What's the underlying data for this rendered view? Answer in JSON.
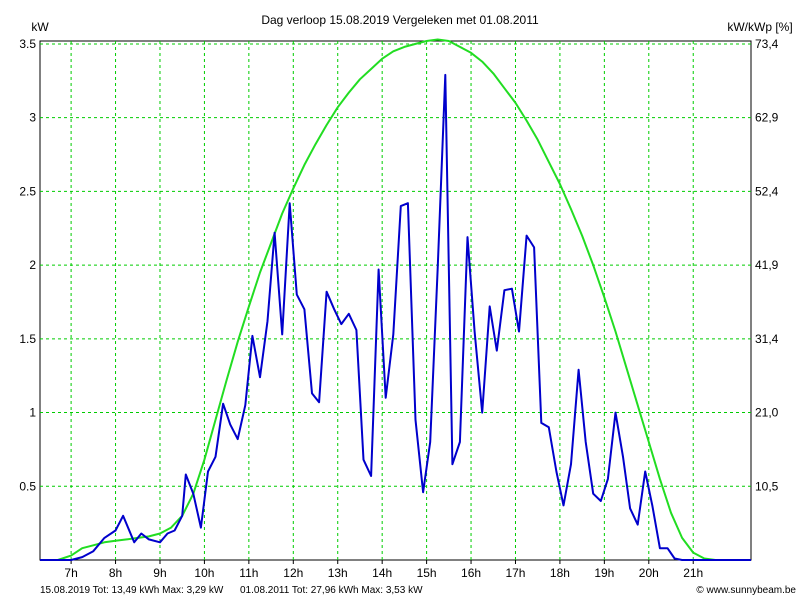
{
  "chart_data": {
    "type": "line",
    "title": "Dag  verloop 15.08.2019   Vergeleken met 01.08.2011",
    "ylabel_left": "kW",
    "ylabel_right": "kW/kWp [%]",
    "xlim": [
      6.3,
      22.3
    ],
    "ylim": [
      0,
      3.52
    ],
    "x_ticks": [
      7,
      8,
      9,
      10,
      11,
      12,
      13,
      14,
      15,
      16,
      17,
      18,
      19,
      20,
      21
    ],
    "x_tick_labels": [
      "7h",
      "8h",
      "9h",
      "10h",
      "11h",
      "12h",
      "13h",
      "14h",
      "15h",
      "16h",
      "17h",
      "18h",
      "19h",
      "20h",
      "21h"
    ],
    "y_ticks": [
      0.5,
      1,
      1.5,
      2,
      2.5,
      3,
      3.5
    ],
    "y_tick_labels": [
      "0.5",
      "1",
      "1.5",
      "2",
      "2.5",
      "3",
      "3.5"
    ],
    "y2_tick_labels": [
      "10,5",
      "21,0",
      "31,4",
      "41,9",
      "52,4",
      "62,9",
      "73,4"
    ],
    "grid": true,
    "colors": {
      "series1": "#0000cc",
      "series2": "#22dd22",
      "grid": "#00cc00"
    },
    "series": [
      {
        "name": "15.08.2019",
        "color": "#0000cc",
        "x": [
          6.3,
          7.0,
          7.25,
          7.5,
          7.75,
          8.0,
          8.17,
          8.42,
          8.58,
          8.75,
          9.0,
          9.17,
          9.33,
          9.5,
          9.58,
          9.75,
          9.92,
          10.08,
          10.25,
          10.42,
          10.58,
          10.75,
          10.92,
          11.08,
          11.25,
          11.42,
          11.58,
          11.75,
          11.92,
          12.08,
          12.25,
          12.42,
          12.58,
          12.75,
          12.92,
          13.08,
          13.25,
          13.42,
          13.58,
          13.75,
          13.92,
          14.08,
          14.25,
          14.42,
          14.58,
          14.75,
          14.92,
          15.08,
          15.25,
          15.42,
          15.58,
          15.75,
          15.92,
          16.08,
          16.25,
          16.42,
          16.58,
          16.75,
          16.92,
          17.08,
          17.25,
          17.42,
          17.58,
          17.75,
          17.92,
          18.08,
          18.25,
          18.42,
          18.58,
          18.75,
          18.92,
          19.08,
          19.25,
          19.42,
          19.58,
          19.75,
          19.92,
          20.08,
          20.25,
          20.42,
          20.58,
          20.75,
          20.92,
          22.3
        ],
        "values": [
          0,
          0,
          0.02,
          0.06,
          0.15,
          0.2,
          0.3,
          0.12,
          0.18,
          0.14,
          0.12,
          0.18,
          0.2,
          0.3,
          0.58,
          0.45,
          0.22,
          0.6,
          0.7,
          1.06,
          0.92,
          0.82,
          1.05,
          1.52,
          1.24,
          1.62,
          2.22,
          1.53,
          2.42,
          1.8,
          1.7,
          1.13,
          1.07,
          1.82,
          1.7,
          1.6,
          1.67,
          1.56,
          0.68,
          0.57,
          1.97,
          1.1,
          1.53,
          2.4,
          2.42,
          0.95,
          0.46,
          0.8,
          1.98,
          3.29,
          0.65,
          0.8,
          2.19,
          1.55,
          1.0,
          1.72,
          1.42,
          1.83,
          1.84,
          1.55,
          2.2,
          2.12,
          0.93,
          0.9,
          0.6,
          0.37,
          0.65,
          1.29,
          0.8,
          0.45,
          0.4,
          0.55,
          1.0,
          0.7,
          0.35,
          0.24,
          0.6,
          0.37,
          0.08,
          0.08,
          0.01,
          0,
          0,
          0
        ]
      },
      {
        "name": "01.08.2011",
        "color": "#22dd22",
        "x": [
          6.3,
          6.7,
          7.0,
          7.25,
          7.5,
          7.75,
          8.0,
          8.25,
          8.5,
          8.75,
          9.0,
          9.25,
          9.5,
          9.75,
          10.0,
          10.25,
          10.5,
          10.75,
          11.0,
          11.25,
          11.5,
          11.75,
          12.0,
          12.25,
          12.5,
          12.75,
          13.0,
          13.25,
          13.5,
          13.75,
          14.0,
          14.25,
          14.5,
          14.75,
          15.0,
          15.25,
          15.5,
          15.75,
          16.0,
          16.25,
          16.5,
          16.75,
          17.0,
          17.25,
          17.5,
          17.75,
          18.0,
          18.25,
          18.5,
          18.75,
          19.0,
          19.25,
          19.5,
          19.75,
          20.0,
          20.25,
          20.5,
          20.75,
          21.0,
          21.25,
          21.5,
          21.75,
          22.3
        ],
        "values": [
          0,
          0.0,
          0.03,
          0.08,
          0.1,
          0.12,
          0.13,
          0.14,
          0.15,
          0.16,
          0.18,
          0.22,
          0.3,
          0.45,
          0.68,
          0.95,
          1.22,
          1.48,
          1.72,
          1.95,
          2.15,
          2.35,
          2.52,
          2.68,
          2.82,
          2.95,
          3.07,
          3.17,
          3.26,
          3.33,
          3.4,
          3.45,
          3.48,
          3.5,
          3.52,
          3.53,
          3.52,
          3.48,
          3.44,
          3.38,
          3.3,
          3.2,
          3.1,
          2.98,
          2.85,
          2.7,
          2.55,
          2.38,
          2.2,
          2.0,
          1.78,
          1.55,
          1.3,
          1.05,
          0.8,
          0.55,
          0.32,
          0.15,
          0.05,
          0.01,
          0,
          0,
          0
        ]
      }
    ],
    "footer": {
      "series1_label": "15.08.2019 Tot: 13,49 kWh Max: 3,29 kW",
      "series2_label": "01.08.2011 Tot: 27,96 kWh Max: 3,53 kW",
      "credit": "© www.sunnybeam.be"
    }
  }
}
